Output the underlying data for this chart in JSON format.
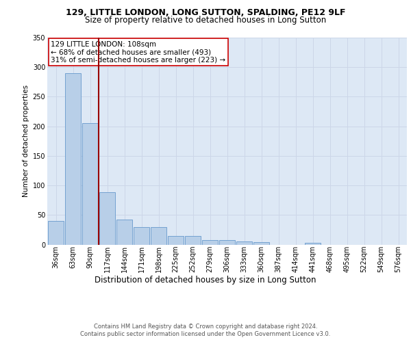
{
  "title1": "129, LITTLE LONDON, LONG SUTTON, SPALDING, PE12 9LF",
  "title2": "Size of property relative to detached houses in Long Sutton",
  "xlabel": "Distribution of detached houses by size in Long Sutton",
  "ylabel": "Number of detached properties",
  "footer1": "Contains HM Land Registry data © Crown copyright and database right 2024.",
  "footer2": "Contains public sector information licensed under the Open Government Licence v3.0.",
  "annotation_title": "129 LITTLE LONDON: 108sqm",
  "annotation_line1": "← 68% of detached houses are smaller (493)",
  "annotation_line2": "31% of semi-detached houses are larger (223) →",
  "bar_color": "#b8cfe8",
  "bar_edge_color": "#6699cc",
  "vline_color": "#990000",
  "annotation_box_facecolor": "#ffffff",
  "annotation_box_edgecolor": "#cc0000",
  "grid_color": "#ccd6e8",
  "background_color": "#dde8f5",
  "categories": [
    "36sqm",
    "63sqm",
    "90sqm",
    "117sqm",
    "144sqm",
    "171sqm",
    "198sqm",
    "225sqm",
    "252sqm",
    "279sqm",
    "306sqm",
    "333sqm",
    "360sqm",
    "387sqm",
    "414sqm",
    "441sqm",
    "468sqm",
    "495sqm",
    "522sqm",
    "549sqm",
    "576sqm"
  ],
  "values": [
    40,
    290,
    205,
    88,
    42,
    30,
    30,
    15,
    15,
    8,
    7,
    5,
    4,
    0,
    0,
    3,
    0,
    0,
    0,
    0,
    0
  ],
  "vline_x_index": 2.5,
  "ylim": [
    0,
    350
  ],
  "yticks": [
    0,
    50,
    100,
    150,
    200,
    250,
    300,
    350
  ],
  "title1_fontsize": 9.0,
  "title2_fontsize": 8.5,
  "ylabel_fontsize": 7.5,
  "xlabel_fontsize": 8.5,
  "tick_fontsize": 7.0,
  "annotation_fontsize": 7.5,
  "footer_fontsize": 6.0,
  "footer_color": "#555555"
}
